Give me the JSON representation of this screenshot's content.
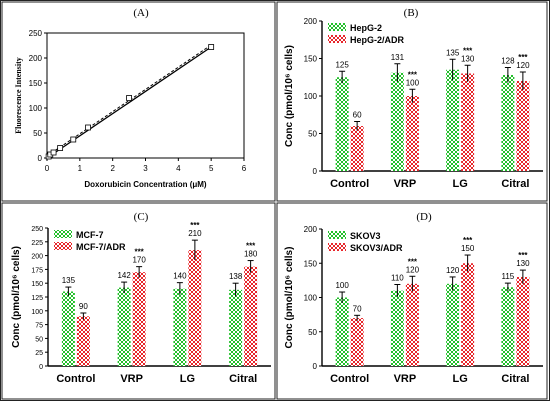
{
  "figure": {
    "panels": [
      "(A)",
      "(B)",
      "(C)",
      "(D)"
    ]
  },
  "colors": {
    "green": "#22c02a",
    "red": "#e8262b",
    "legend_green_text": "#1aa81f",
    "legend_red_text": "#e0141c",
    "line": "#000000"
  },
  "chart_data": [
    {
      "panel": "(A)",
      "type": "scatter",
      "xlabel": "Doxorubicin Concentration (μM)",
      "ylabel": "Fluorescence Intensity",
      "xlim": [
        0,
        6
      ],
      "ylim": [
        0,
        250
      ],
      "xticks": [
        "0",
        "1",
        "2",
        "3",
        "4",
        "5",
        "6"
      ],
      "yticks": [
        "0",
        "50",
        "100",
        "150",
        "200",
        "250"
      ],
      "points": [
        {
          "x": 0.05,
          "y": 3
        },
        {
          "x": 0.1,
          "y": 7
        },
        {
          "x": 0.2,
          "y": 11
        },
        {
          "x": 0.4,
          "y": 20
        },
        {
          "x": 0.8,
          "y": 37
        },
        {
          "x": 1.25,
          "y": 61
        },
        {
          "x": 2.5,
          "y": 120
        },
        {
          "x": 5.0,
          "y": 222
        }
      ],
      "fit_line": {
        "x": [
          0,
          5.0
        ],
        "y": [
          0,
          222
        ]
      }
    },
    {
      "panel": "(B)",
      "type": "bar",
      "ylabel": "Conc (pmol/10⁶ cells)",
      "ylim": [
        0,
        200
      ],
      "yticks": [
        "0",
        "50",
        "100",
        "150",
        "200"
      ],
      "categories": [
        "Control",
        "VRP",
        "LG",
        "Citral"
      ],
      "legend_position": "top-left",
      "series": [
        {
          "name": "HepG-2",
          "color": "green",
          "values": [
            125,
            131,
            135,
            128
          ],
          "errors": [
            8,
            12,
            14,
            10
          ],
          "labels": [
            "125",
            "131",
            "135",
            "128"
          ]
        },
        {
          "name": "HepG-2/ADR",
          "color": "red",
          "values": [
            60,
            100,
            130,
            120
          ],
          "errors": [
            6,
            9,
            11,
            12
          ],
          "labels": [
            "60",
            "100",
            "130",
            "120"
          ]
        }
      ],
      "significance": [
        "",
        "***",
        "***",
        "***"
      ]
    },
    {
      "panel": "(C)",
      "type": "bar",
      "ylabel": "Conc (pmol/10⁶ cells)",
      "ylim": [
        0,
        250
      ],
      "yticks": [
        "0",
        "25",
        "50",
        "75",
        "100",
        "125",
        "150",
        "175",
        "200",
        "225",
        "250"
      ],
      "categories": [
        "Control",
        "VRP",
        "LG",
        "Citral"
      ],
      "legend_position": "top-left",
      "series": [
        {
          "name": "MCF-7",
          "color": "green",
          "values": [
            135,
            142,
            140,
            138
          ],
          "errors": [
            8,
            10,
            11,
            12
          ],
          "labels": [
            "135",
            "142",
            "140",
            "138"
          ]
        },
        {
          "name": "MCF-7/ADR",
          "color": "red",
          "values": [
            90,
            170,
            210,
            180
          ],
          "errors": [
            6,
            10,
            18,
            11
          ],
          "labels": [
            "90",
            "170",
            "210",
            "180"
          ]
        }
      ],
      "significance": [
        "",
        "***",
        "***",
        "***"
      ]
    },
    {
      "panel": "(D)",
      "type": "bar",
      "ylabel": "Conc (pmol/10⁶ cells)",
      "ylim": [
        0,
        200
      ],
      "yticks": [
        "0",
        "50",
        "100",
        "150",
        "200"
      ],
      "categories": [
        "Control",
        "VRP",
        "LG",
        "Citral"
      ],
      "legend_position": "top-left",
      "series": [
        {
          "name": "SKOV3",
          "color": "green",
          "values": [
            100,
            110,
            120,
            115
          ],
          "errors": [
            8,
            9,
            10,
            6
          ],
          "labels": [
            "100",
            "110",
            "120",
            "115"
          ]
        },
        {
          "name": "SKOV3/ADR",
          "color": "red",
          "values": [
            70,
            120,
            150,
            130
          ],
          "errors": [
            4,
            11,
            12,
            10
          ],
          "labels": [
            "70",
            "120",
            "150",
            "130"
          ]
        }
      ],
      "significance": [
        "",
        "***",
        "***",
        "***"
      ]
    }
  ]
}
